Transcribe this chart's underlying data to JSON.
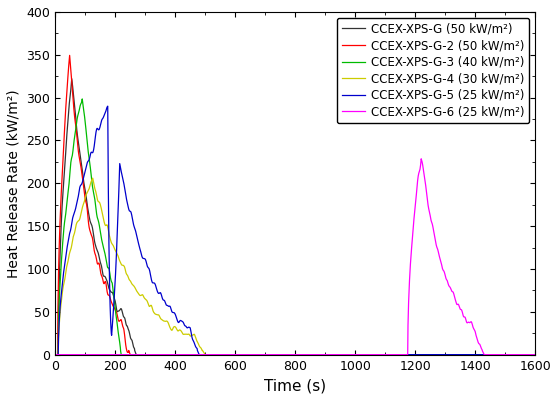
{
  "title": "",
  "xlabel": "Time (s)",
  "ylabel": "Heat Release Rate (kW/m²)",
  "xlim": [
    0,
    1600
  ],
  "ylim": [
    0,
    400
  ],
  "xticks": [
    0,
    200,
    400,
    600,
    800,
    1000,
    1200,
    1400,
    1600
  ],
  "yticks": [
    0,
    50,
    100,
    150,
    200,
    250,
    300,
    350,
    400
  ],
  "series": [
    {
      "label": "CCEX-XPS-G (50 kW/m²)",
      "color": "#333333",
      "peak": 320,
      "peak_time": 55,
      "start": 10,
      "decay_half": 60,
      "tail_end": 270,
      "noise_seed": 1
    },
    {
      "label": "CCEX-XPS-G-2 (50 kW/m²)",
      "color": "#ff0000",
      "peak": 348,
      "peak_time": 48,
      "start": 8,
      "decay_half": 55,
      "tail_end": 250,
      "noise_seed": 2
    },
    {
      "label": "CCEX-XPS-G-3 (40 kW/m²)",
      "color": "#00bb00",
      "peak": 305,
      "peak_time": 90,
      "start": 10,
      "decay_half": 55,
      "tail_end": 220,
      "noise_seed": 3
    },
    {
      "label": "CCEX-XPS-G-4 (30 kW/m²)",
      "color": "#cccc00",
      "peak": 205,
      "peak_time": 125,
      "start": 10,
      "decay_half": 100,
      "tail_end": 500,
      "noise_seed": 4
    },
    {
      "label": "CCEX-XPS-G-5 (25 kW/m²)",
      "color": "#0000cc",
      "peak": 290,
      "peak_time": 175,
      "start": 10,
      "decay_half": 80,
      "tail_end": 480,
      "noise_seed": 5
    },
    {
      "label": "CCEX-XPS-G-6 (25 kW/m²)",
      "color": "#ff00ff",
      "peak": 232,
      "peak_time": 1220,
      "start": 1175,
      "decay_half": 60,
      "tail_end": 1430,
      "noise_seed": 6
    }
  ],
  "background_color": "#ffffff",
  "legend_loc": "upper right",
  "legend_fontsize": 8.5
}
